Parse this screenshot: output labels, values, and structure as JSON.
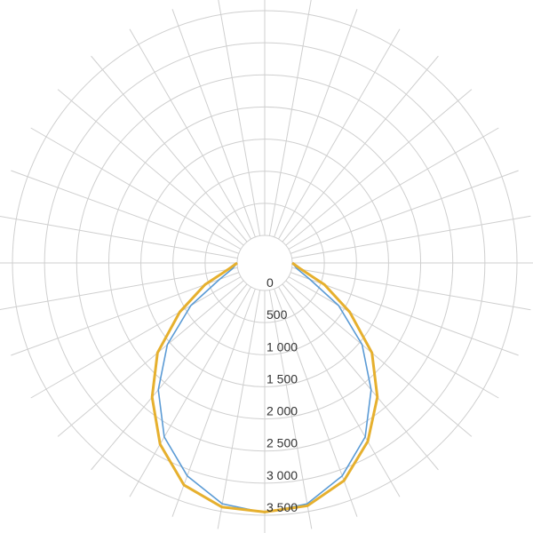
{
  "chart_data": {
    "type": "polar-line",
    "angle_step_deg": 10,
    "radial_range": [
      0,
      3500
    ],
    "radial_ticks": [
      "0",
      "500",
      "1 000",
      "1 500",
      "2 000",
      "2 500",
      "3 000",
      "3 500"
    ],
    "grid": true,
    "angles_deg": [
      -90,
      -80,
      -70,
      -60,
      -50,
      -40,
      -30,
      -20,
      -10,
      0,
      10,
      20,
      30,
      40,
      50,
      60,
      70,
      80,
      90
    ],
    "series": [
      {
        "color": "#5b9bd5",
        "values": [
          0,
          80,
          320,
          900,
          1550,
          2150,
          2700,
          3100,
          3380,
          3460,
          3380,
          3100,
          2700,
          2150,
          1550,
          900,
          320,
          80,
          0
        ]
      },
      {
        "color": "#e6b02e",
        "values": [
          0,
          150,
          560,
          1100,
          1750,
          2300,
          2830,
          3250,
          3430,
          3450,
          3410,
          3180,
          2780,
          2300,
          1750,
          1100,
          560,
          150,
          0
        ]
      }
    ]
  }
}
